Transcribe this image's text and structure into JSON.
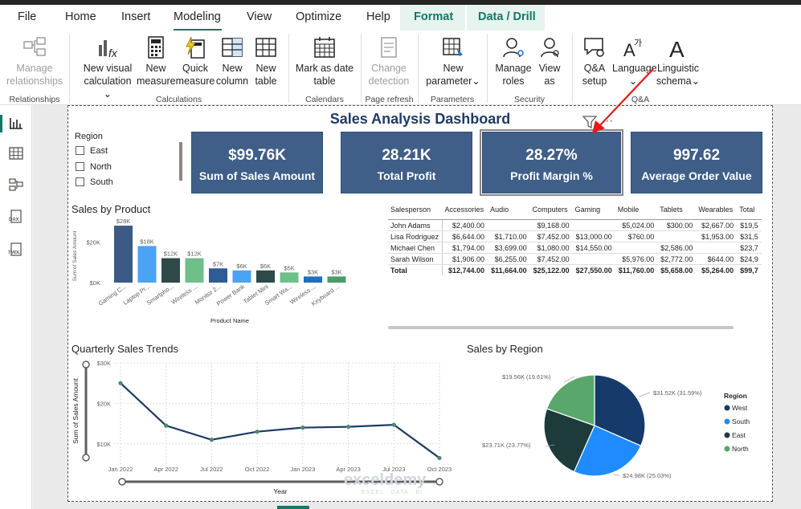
{
  "menu": [
    "File",
    "Home",
    "Insert",
    "Modeling",
    "View",
    "Optimize",
    "Help",
    "Format",
    "Data / Drill"
  ],
  "ribbon": {
    "manage_relationships": [
      "Manage",
      "relationships"
    ],
    "new_visual_calc": [
      "New visual",
      "calculation"
    ],
    "new_measure": [
      "New",
      "measure"
    ],
    "quick_measure": [
      "Quick",
      "measure"
    ],
    "new_column": [
      "New",
      "column"
    ],
    "new_table": [
      "New",
      "table"
    ],
    "mark_date": [
      "Mark as date",
      "table"
    ],
    "change_detection": [
      "Change",
      "detection"
    ],
    "new_parameter": [
      "New",
      "parameter"
    ],
    "manage_roles": [
      "Manage",
      "roles"
    ],
    "view_as": [
      "View",
      "as"
    ],
    "qa_setup": [
      "Q&A",
      "setup"
    ],
    "language": [
      "Language",
      ""
    ],
    "linguistic_schema": [
      "Linguistic",
      "schema"
    ],
    "groups": [
      "Relationships",
      "Calculations",
      "Calendars",
      "Page refresh",
      "Parameters",
      "Security",
      "Q&A"
    ]
  },
  "leftbar": [
    "report-view",
    "table-view",
    "model-view",
    "DAX",
    "TMDL"
  ],
  "dashboard": {
    "title": "Sales Analysis Dashboard",
    "slicer": {
      "title": "Region",
      "options": [
        "East",
        "North",
        "South"
      ]
    },
    "kpis": [
      {
        "value": "$99.76K",
        "label": "Sum of Sales Amount"
      },
      {
        "value": "28.21K",
        "label": "Total Profit"
      },
      {
        "value": "28.27%",
        "label": "Profit Margin %"
      },
      {
        "value": "997.62",
        "label": "Average Order Value"
      }
    ],
    "sales_by_product_title": "Sales by Product",
    "quarterly_title": "Quarterly Sales Trends",
    "region_title": "Sales by Region",
    "matrix": {
      "headers": [
        "Salesperson",
        "Accessories",
        "Audio",
        "Computers",
        "Gaming",
        "Mobile",
        "Tablets",
        "Wearables",
        "Total"
      ],
      "rows": [
        [
          "John Adams",
          "$2,400.00",
          "",
          "$9,168.00",
          "",
          "$5,024.00",
          "$300.00",
          "$2,667.00",
          "$19,5"
        ],
        [
          "Lisa Rodriguez",
          "$6,644.00",
          "$1,710.00",
          "$7,452.00",
          "$13,000.00",
          "$760.00",
          "",
          "$1,953.00",
          "$31,5"
        ],
        [
          "Michael Chen",
          "$1,794.00",
          "$3,699.00",
          "$1,080.00",
          "$14,550.00",
          "",
          "$2,586.00",
          "",
          "$23,7"
        ],
        [
          "Sarah Wilson",
          "$1,906.00",
          "$6,255.00",
          "$7,452.00",
          "",
          "$5,976.00",
          "$2,772.00",
          "$644.00",
          "$24,9"
        ]
      ],
      "total": [
        "Total",
        "$12,744.00",
        "$11,664.00",
        "$25,122.00",
        "$27,550.00",
        "$11,760.00",
        "$5,658.00",
        "$5,264.00",
        "$99,7"
      ]
    },
    "watermark": {
      "name": "exceldemy",
      "sub": "EXCEL · DATA · BI"
    }
  },
  "chart_data": [
    {
      "type": "bar",
      "title": "Sales by Product",
      "xlabel": "Product Name",
      "ylabel": "Sum of Sales Amount",
      "categories": [
        "Gaming C...",
        "Laptop Pr...",
        "Smartpho...",
        "Wireless ...",
        "Monitor 2...",
        "Power Bank",
        "Tablet Mini",
        "Smart Wa...",
        "Wireless ...",
        "Keyboard ..."
      ],
      "values": [
        28000,
        18000,
        12000,
        12000,
        7000,
        6000,
        6000,
        5000,
        3000,
        3000
      ],
      "data_labels": [
        "$28K",
        "$18K",
        "$12K",
        "$12K",
        "$7K",
        "$6K",
        "$6K",
        "$5K",
        "$3K",
        "$3K"
      ],
      "colors": [
        "#3b5b85",
        "#4aa3f5",
        "#2e4a48",
        "#6fbf8a",
        "#2f5c94",
        "#4aa3f5",
        "#2e4a48",
        "#6fbf8a",
        "#1e6fbf",
        "#4a9a6a"
      ],
      "yticks": [
        "$0K",
        "$20K"
      ],
      "ylim": [
        0,
        30000
      ]
    },
    {
      "type": "line",
      "title": "Quarterly Sales Trends",
      "xlabel": "Year",
      "ylabel": "Sum of Sales Amount",
      "x": [
        "Jan 2022",
        "Apr 2022",
        "Jul 2022",
        "Oct 2022",
        "Jan 2023",
        "Apr 2023",
        "Jul 2023",
        "Oct 2023"
      ],
      "values": [
        25000,
        14500,
        11000,
        13000,
        14000,
        14200,
        14700,
        6500
      ],
      "yticks": [
        "$10K",
        "$20K",
        "$30K"
      ],
      "ylim": [
        5000,
        30000
      ],
      "color": "#1f3b64"
    },
    {
      "type": "pie",
      "title": "Sales by Region",
      "legend_title": "Region",
      "slices": [
        {
          "name": "West",
          "value": 31520,
          "label": "$31.52K (31.59%)",
          "color": "#153a6b"
        },
        {
          "name": "South",
          "value": 24980,
          "label": "$24.98K (25.03%)",
          "color": "#1f8bff"
        },
        {
          "name": "East",
          "value": 23710,
          "label": "$23.71K (23.77%)",
          "color": "#1d3b3a"
        },
        {
          "name": "North",
          "value": 19560,
          "label": "$19.56K (19.61%)",
          "color": "#5aa76e"
        }
      ]
    }
  ]
}
